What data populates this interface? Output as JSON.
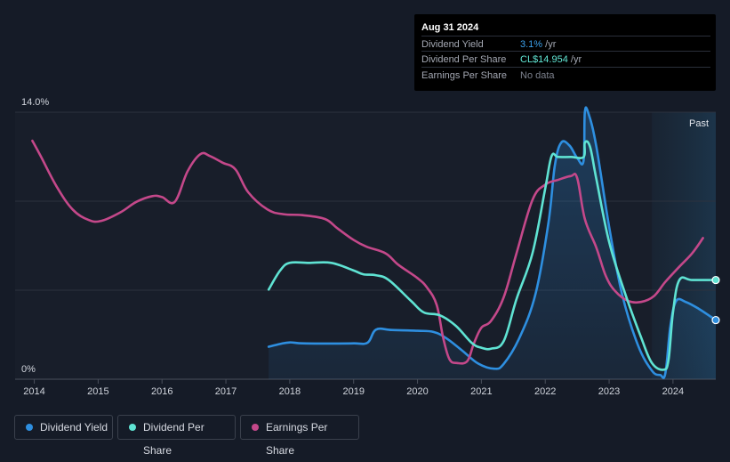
{
  "tooltip": {
    "date": "Aug 31 2024",
    "rows": [
      {
        "label": "Dividend Yield",
        "value": "3.1%",
        "unit": " /yr",
        "color": "#3ba0ea"
      },
      {
        "label": "Dividend Per Share",
        "value": "CL$14.954",
        "unit": " /yr",
        "color": "#62e8d6"
      },
      {
        "label": "Earnings Per Share",
        "value": "No data",
        "unit": "",
        "color": "#7d828e"
      }
    ]
  },
  "past_label": "Past",
  "legend": [
    {
      "label": "Dividend Yield",
      "color": "#2e8fe0"
    },
    {
      "label": "Dividend Per Share",
      "color": "#5fe3d3"
    },
    {
      "label": "Earnings Per Share",
      "color": "#c4488a"
    }
  ],
  "chart_data": {
    "type": "line",
    "y_tick_labels": [
      "14.0%",
      "0%"
    ],
    "ylim": [
      0,
      14
    ],
    "xlim": [
      2013.7,
      2024.67
    ],
    "x_ticks": [
      2014,
      2015,
      2016,
      2017,
      2018,
      2019,
      2020,
      2021,
      2022,
      2023,
      2024
    ],
    "forecast_start": 2023.67,
    "series": [
      {
        "name": "Dividend Yield",
        "color": "#2e8fe0",
        "area": true,
        "points": [
          [
            2017.67,
            1.7
          ],
          [
            2017.85,
            1.85
          ],
          [
            2018.0,
            1.93
          ],
          [
            2018.2,
            1.88
          ],
          [
            2018.6,
            1.87
          ],
          [
            2019.0,
            1.88
          ],
          [
            2019.22,
            1.92
          ],
          [
            2019.35,
            2.6
          ],
          [
            2019.6,
            2.58
          ],
          [
            2020.0,
            2.54
          ],
          [
            2020.25,
            2.48
          ],
          [
            2020.45,
            2.15
          ],
          [
            2020.7,
            1.5
          ],
          [
            2020.95,
            0.82
          ],
          [
            2021.2,
            0.55
          ],
          [
            2021.35,
            0.8
          ],
          [
            2021.6,
            2.2
          ],
          [
            2021.85,
            4.5
          ],
          [
            2022.05,
            8.2
          ],
          [
            2022.15,
            11.2
          ],
          [
            2022.25,
            12.4
          ],
          [
            2022.38,
            12.25
          ],
          [
            2022.5,
            11.6
          ],
          [
            2022.6,
            11.45
          ],
          [
            2022.62,
            14.0
          ],
          [
            2022.68,
            13.9
          ],
          [
            2022.8,
            12.2
          ],
          [
            2023.0,
            8.0
          ],
          [
            2023.2,
            4.5
          ],
          [
            2023.45,
            1.8
          ],
          [
            2023.67,
            0.45
          ],
          [
            2023.8,
            0.22
          ],
          [
            2023.88,
            0.3
          ],
          [
            2023.96,
            2.8
          ],
          [
            2024.05,
            4.1
          ],
          [
            2024.2,
            4.05
          ],
          [
            2024.4,
            3.7
          ],
          [
            2024.67,
            3.1
          ]
        ]
      },
      {
        "name": "Dividend Per Share",
        "color": "#5fe3d3",
        "area": false,
        "points": [
          [
            2017.67,
            4.7
          ],
          [
            2017.85,
            5.7
          ],
          [
            2018.0,
            6.1
          ],
          [
            2018.3,
            6.1
          ],
          [
            2018.65,
            6.1
          ],
          [
            2019.0,
            5.7
          ],
          [
            2019.15,
            5.5
          ],
          [
            2019.35,
            5.45
          ],
          [
            2019.55,
            5.2
          ],
          [
            2019.9,
            4.1
          ],
          [
            2020.1,
            3.5
          ],
          [
            2020.35,
            3.35
          ],
          [
            2020.6,
            2.8
          ],
          [
            2020.85,
            1.9
          ],
          [
            2021.0,
            1.65
          ],
          [
            2021.15,
            1.6
          ],
          [
            2021.35,
            2.0
          ],
          [
            2021.55,
            4.2
          ],
          [
            2021.8,
            6.6
          ],
          [
            2022.0,
            10.0
          ],
          [
            2022.1,
            11.7
          ],
          [
            2022.2,
            11.65
          ],
          [
            2022.4,
            11.65
          ],
          [
            2022.6,
            11.65
          ],
          [
            2022.62,
            12.4
          ],
          [
            2022.7,
            12.2
          ],
          [
            2022.8,
            10.5
          ],
          [
            2023.0,
            7.2
          ],
          [
            2023.25,
            4.5
          ],
          [
            2023.5,
            2.2
          ],
          [
            2023.67,
            0.85
          ],
          [
            2023.85,
            0.5
          ],
          [
            2023.93,
            1.0
          ],
          [
            2024.0,
            3.5
          ],
          [
            2024.1,
            5.2
          ],
          [
            2024.3,
            5.2
          ],
          [
            2024.67,
            5.2
          ]
        ]
      },
      {
        "name": "Earnings Per Share",
        "color": "#c4488a",
        "area": false,
        "points": [
          [
            2013.97,
            12.5
          ],
          [
            2014.1,
            11.7
          ],
          [
            2014.35,
            10.1
          ],
          [
            2014.6,
            8.9
          ],
          [
            2014.85,
            8.35
          ],
          [
            2015.05,
            8.3
          ],
          [
            2015.35,
            8.75
          ],
          [
            2015.6,
            9.3
          ],
          [
            2015.85,
            9.6
          ],
          [
            2016.0,
            9.55
          ],
          [
            2016.2,
            9.3
          ],
          [
            2016.4,
            10.9
          ],
          [
            2016.6,
            11.8
          ],
          [
            2016.75,
            11.7
          ],
          [
            2016.95,
            11.35
          ],
          [
            2017.15,
            11.0
          ],
          [
            2017.35,
            9.8
          ],
          [
            2017.65,
            8.9
          ],
          [
            2017.9,
            8.65
          ],
          [
            2018.2,
            8.6
          ],
          [
            2018.55,
            8.4
          ],
          [
            2018.75,
            7.9
          ],
          [
            2019.0,
            7.3
          ],
          [
            2019.2,
            6.95
          ],
          [
            2019.5,
            6.6
          ],
          [
            2019.7,
            6.0
          ],
          [
            2020.0,
            5.3
          ],
          [
            2020.15,
            4.8
          ],
          [
            2020.3,
            3.9
          ],
          [
            2020.4,
            2.2
          ],
          [
            2020.5,
            1.05
          ],
          [
            2020.62,
            0.85
          ],
          [
            2020.78,
            0.95
          ],
          [
            2020.88,
            1.85
          ],
          [
            2021.0,
            2.7
          ],
          [
            2021.15,
            3.05
          ],
          [
            2021.35,
            4.3
          ],
          [
            2021.55,
            6.6
          ],
          [
            2021.8,
            9.4
          ],
          [
            2022.0,
            10.2
          ],
          [
            2022.2,
            10.45
          ],
          [
            2022.4,
            10.65
          ],
          [
            2022.5,
            10.55
          ],
          [
            2022.62,
            8.4
          ],
          [
            2022.8,
            6.9
          ],
          [
            2022.95,
            5.4
          ],
          [
            2023.1,
            4.6
          ],
          [
            2023.3,
            4.1
          ],
          [
            2023.5,
            4.05
          ],
          [
            2023.7,
            4.35
          ],
          [
            2023.88,
            5.1
          ],
          [
            2024.1,
            5.9
          ],
          [
            2024.3,
            6.6
          ],
          [
            2024.47,
            7.4
          ]
        ]
      }
    ]
  }
}
